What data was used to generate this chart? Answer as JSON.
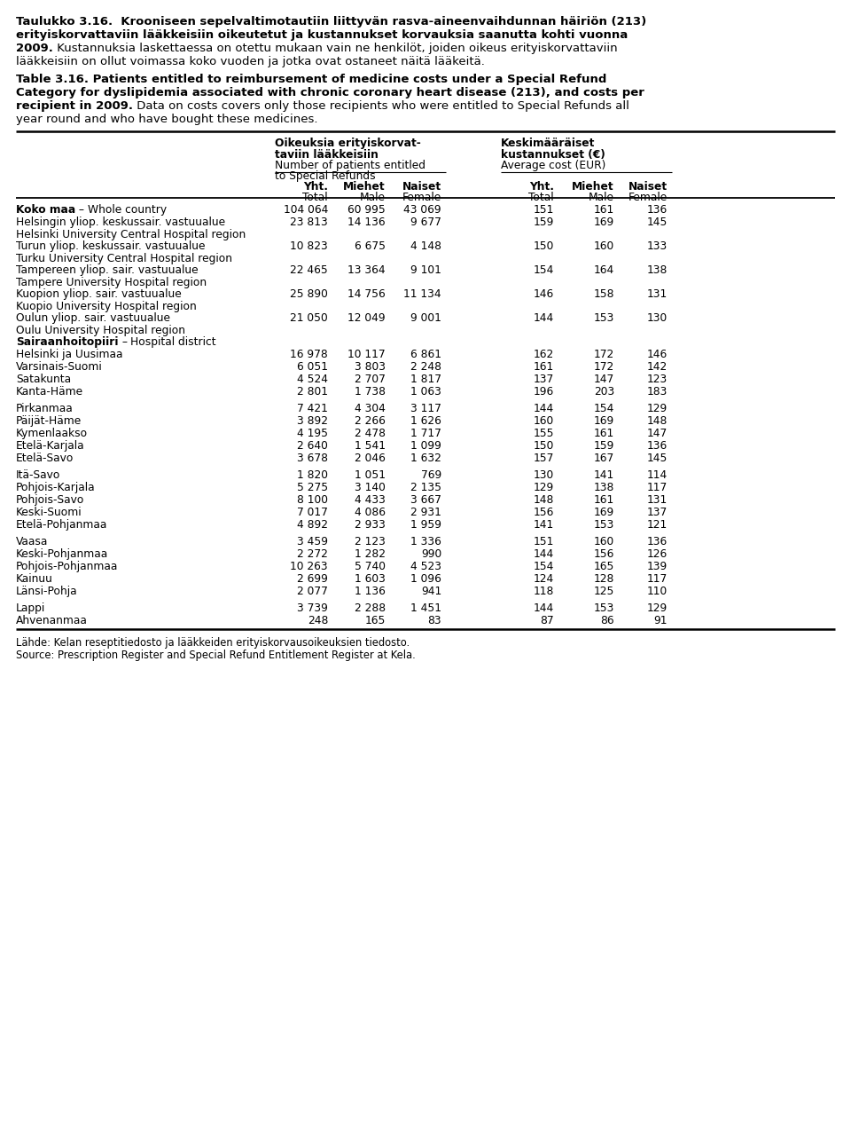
{
  "fi_line1_bold": "Taulukko 3.16.",
  "fi_line1_rest": "  Krooniseen sepelvaltimotautiin liittyvän rasva-aineenvaihdunnan häiriön (213)",
  "fi_line2": "erityiskorvattaviin lääkkeisiin oikeutetut ja kustannukset korvauksia saanutta kohti vuonna",
  "fi_line3_bold": "2009.",
  "fi_line3_rest": " Kustannuksia laskettaessa on otettu mukaan vain ne henkilöt, joiden oikeus erityiskorvattaviin",
  "fi_line4": "lääkkeisiin on ollut voimassa koko vuoden ja jotka ovat ostaneet näitä lääkeitä.",
  "en_line1_bold": "Table 3.16.",
  "en_line1_rest": " Patients entitled to reimbursement of medicine costs under a Special Refund",
  "en_line2": "Category for dyslipidemia associated with chronic coronary heart disease (213), and costs per",
  "en_line3_bold": "recipient in 2009.",
  "en_line3_rest": " Data on costs covers only those recipients who were entitled to Special Refunds all",
  "en_line4": "year round and who have bought these medicines.",
  "col_hdr_left_b1": "Oikeuksia erityiskorvat-",
  "col_hdr_left_b2": "taviin lääkkeisiin",
  "col_hdr_left_n1": "Number of patients entitled",
  "col_hdr_left_n2": "to Special Refunds",
  "col_hdr_right_b1": "Keskimääräiset",
  "col_hdr_right_b2": "kustannukset (€)",
  "col_hdr_right_n1": "Average cost (EUR)",
  "rows": [
    {
      "label": "Koko maa",
      "label_bold": true,
      "label_sep": " – ",
      "label_rest": "Whole country",
      "label2": null,
      "n_tot": "104 064",
      "n_m": "60 995",
      "n_f": "43 069",
      "c_tot": "151",
      "c_m": "161",
      "c_f": "136",
      "gap_before": false
    },
    {
      "label": "Helsingin yliop. keskussair. vastuualue",
      "label_bold": false,
      "label_sep": null,
      "label_rest": null,
      "label2": "Helsinki University Central Hospital region",
      "n_tot": "23 813",
      "n_m": "14 136",
      "n_f": "9 677",
      "c_tot": "159",
      "c_m": "169",
      "c_f": "145",
      "gap_before": false
    },
    {
      "label": "Turun yliop. keskussair. vastuualue",
      "label_bold": false,
      "label_sep": null,
      "label_rest": null,
      "label2": "Turku University Central Hospital region",
      "n_tot": "10 823",
      "n_m": "6 675",
      "n_f": "4 148",
      "c_tot": "150",
      "c_m": "160",
      "c_f": "133",
      "gap_before": false
    },
    {
      "label": "Tampereen yliop. sair. vastuualue",
      "label_bold": false,
      "label_sep": null,
      "label_rest": null,
      "label2": "Tampere University Hospital region",
      "n_tot": "22 465",
      "n_m": "13 364",
      "n_f": "9 101",
      "c_tot": "154",
      "c_m": "164",
      "c_f": "138",
      "gap_before": false
    },
    {
      "label": "Kuopion yliop. sair. vastuualue",
      "label_bold": false,
      "label_sep": null,
      "label_rest": null,
      "label2": "Kuopio University Hospital region",
      "n_tot": "25 890",
      "n_m": "14 756",
      "n_f": "11 134",
      "c_tot": "146",
      "c_m": "158",
      "c_f": "131",
      "gap_before": false
    },
    {
      "label": "Oulun yliop. sair. vastuualue",
      "label_bold": false,
      "label_sep": null,
      "label_rest": null,
      "label2": "Oulu University Hospital region",
      "n_tot": "21 050",
      "n_m": "12 049",
      "n_f": "9 001",
      "c_tot": "144",
      "c_m": "153",
      "c_f": "130",
      "gap_before": false
    },
    {
      "label": "Sairaanhoitopiiri",
      "label_bold": true,
      "label_sep": " – ",
      "label_rest": "Hospital district",
      "label2": null,
      "n_tot": null,
      "n_m": null,
      "n_f": null,
      "c_tot": null,
      "c_m": null,
      "c_f": null,
      "gap_before": false
    },
    {
      "label": "Helsinki ja Uusimaa",
      "label_bold": false,
      "label_sep": null,
      "label_rest": null,
      "label2": null,
      "n_tot": "16 978",
      "n_m": "10 117",
      "n_f": "6 861",
      "c_tot": "162",
      "c_m": "172",
      "c_f": "146",
      "gap_before": false
    },
    {
      "label": "Varsinais-Suomi",
      "label_bold": false,
      "label_sep": null,
      "label_rest": null,
      "label2": null,
      "n_tot": "6 051",
      "n_m": "3 803",
      "n_f": "2 248",
      "c_tot": "161",
      "c_m": "172",
      "c_f": "142",
      "gap_before": false
    },
    {
      "label": "Satakunta",
      "label_bold": false,
      "label_sep": null,
      "label_rest": null,
      "label2": null,
      "n_tot": "4 524",
      "n_m": "2 707",
      "n_f": "1 817",
      "c_tot": "137",
      "c_m": "147",
      "c_f": "123",
      "gap_before": false
    },
    {
      "label": "Kanta-Häme",
      "label_bold": false,
      "label_sep": null,
      "label_rest": null,
      "label2": null,
      "n_tot": "2 801",
      "n_m": "1 738",
      "n_f": "1 063",
      "c_tot": "196",
      "c_m": "203",
      "c_f": "183",
      "gap_before": false
    },
    {
      "label": "Pirkanmaa",
      "label_bold": false,
      "label_sep": null,
      "label_rest": null,
      "label2": null,
      "n_tot": "7 421",
      "n_m": "4 304",
      "n_f": "3 117",
      "c_tot": "144",
      "c_m": "154",
      "c_f": "129",
      "gap_before": true
    },
    {
      "label": "Päijät-Häme",
      "label_bold": false,
      "label_sep": null,
      "label_rest": null,
      "label2": null,
      "n_tot": "3 892",
      "n_m": "2 266",
      "n_f": "1 626",
      "c_tot": "160",
      "c_m": "169",
      "c_f": "148",
      "gap_before": false
    },
    {
      "label": "Kymenlaakso",
      "label_bold": false,
      "label_sep": null,
      "label_rest": null,
      "label2": null,
      "n_tot": "4 195",
      "n_m": "2 478",
      "n_f": "1 717",
      "c_tot": "155",
      "c_m": "161",
      "c_f": "147",
      "gap_before": false
    },
    {
      "label": "Etelä-Karjala",
      "label_bold": false,
      "label_sep": null,
      "label_rest": null,
      "label2": null,
      "n_tot": "2 640",
      "n_m": "1 541",
      "n_f": "1 099",
      "c_tot": "150",
      "c_m": "159",
      "c_f": "136",
      "gap_before": false
    },
    {
      "label": "Etelä-Savo",
      "label_bold": false,
      "label_sep": null,
      "label_rest": null,
      "label2": null,
      "n_tot": "3 678",
      "n_m": "2 046",
      "n_f": "1 632",
      "c_tot": "157",
      "c_m": "167",
      "c_f": "145",
      "gap_before": false
    },
    {
      "label": "Itä-Savo",
      "label_bold": false,
      "label_sep": null,
      "label_rest": null,
      "label2": null,
      "n_tot": "1 820",
      "n_m": "1 051",
      "n_f": "769",
      "c_tot": "130",
      "c_m": "141",
      "c_f": "114",
      "gap_before": true
    },
    {
      "label": "Pohjois-Karjala",
      "label_bold": false,
      "label_sep": null,
      "label_rest": null,
      "label2": null,
      "n_tot": "5 275",
      "n_m": "3 140",
      "n_f": "2 135",
      "c_tot": "129",
      "c_m": "138",
      "c_f": "117",
      "gap_before": false
    },
    {
      "label": "Pohjois-Savo",
      "label_bold": false,
      "label_sep": null,
      "label_rest": null,
      "label2": null,
      "n_tot": "8 100",
      "n_m": "4 433",
      "n_f": "3 667",
      "c_tot": "148",
      "c_m": "161",
      "c_f": "131",
      "gap_before": false
    },
    {
      "label": "Keski-Suomi",
      "label_bold": false,
      "label_sep": null,
      "label_rest": null,
      "label2": null,
      "n_tot": "7 017",
      "n_m": "4 086",
      "n_f": "2 931",
      "c_tot": "156",
      "c_m": "169",
      "c_f": "137",
      "gap_before": false
    },
    {
      "label": "Etelä-Pohjanmaa",
      "label_bold": false,
      "label_sep": null,
      "label_rest": null,
      "label2": null,
      "n_tot": "4 892",
      "n_m": "2 933",
      "n_f": "1 959",
      "c_tot": "141",
      "c_m": "153",
      "c_f": "121",
      "gap_before": false
    },
    {
      "label": "Vaasa",
      "label_bold": false,
      "label_sep": null,
      "label_rest": null,
      "label2": null,
      "n_tot": "3 459",
      "n_m": "2 123",
      "n_f": "1 336",
      "c_tot": "151",
      "c_m": "160",
      "c_f": "136",
      "gap_before": true
    },
    {
      "label": "Keski-Pohjanmaa",
      "label_bold": false,
      "label_sep": null,
      "label_rest": null,
      "label2": null,
      "n_tot": "2 272",
      "n_m": "1 282",
      "n_f": "990",
      "c_tot": "144",
      "c_m": "156",
      "c_f": "126",
      "gap_before": false
    },
    {
      "label": "Pohjois-Pohjanmaa",
      "label_bold": false,
      "label_sep": null,
      "label_rest": null,
      "label2": null,
      "n_tot": "10 263",
      "n_m": "5 740",
      "n_f": "4 523",
      "c_tot": "154",
      "c_m": "165",
      "c_f": "139",
      "gap_before": false
    },
    {
      "label": "Kainuu",
      "label_bold": false,
      "label_sep": null,
      "label_rest": null,
      "label2": null,
      "n_tot": "2 699",
      "n_m": "1 603",
      "n_f": "1 096",
      "c_tot": "124",
      "c_m": "128",
      "c_f": "117",
      "gap_before": false
    },
    {
      "label": "Länsi-Pohja",
      "label_bold": false,
      "label_sep": null,
      "label_rest": null,
      "label2": null,
      "n_tot": "2 077",
      "n_m": "1 136",
      "n_f": "941",
      "c_tot": "118",
      "c_m": "125",
      "c_f": "110",
      "gap_before": false
    },
    {
      "label": "Lappi",
      "label_bold": false,
      "label_sep": null,
      "label_rest": null,
      "label2": null,
      "n_tot": "3 739",
      "n_m": "2 288",
      "n_f": "1 451",
      "c_tot": "144",
      "c_m": "153",
      "c_f": "129",
      "gap_before": true
    },
    {
      "label": "Ahvenanmaa",
      "label_bold": false,
      "label_sep": null,
      "label_rest": null,
      "label2": null,
      "n_tot": "248",
      "n_m": "165",
      "n_f": "83",
      "c_tot": "87",
      "c_m": "86",
      "c_f": "91",
      "gap_before": false
    }
  ],
  "footer1": "Lähde: Kelan reseptitiedosto ja lääkkeiden erityiskorvausoikeuksien tiedosto.",
  "footer2": "Source: Prescription Register and Special Refund Entitlement Register at Kela."
}
